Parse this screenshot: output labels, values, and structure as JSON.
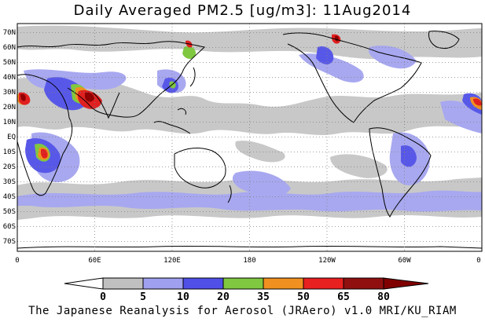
{
  "title": "Daily Averaged PM2.5 [ug/m3]: 11Aug2014",
  "footer": "The Japanese Reanalysis for Aerosol (JRAero) v1.0 MRI/KU_RIAM",
  "map": {
    "lat_labels": [
      "70N",
      "60N",
      "50N",
      "40N",
      "30N",
      "20N",
      "10N",
      "EQ",
      "10S",
      "20S",
      "30S",
      "40S",
      "50S",
      "60S",
      "70S"
    ],
    "lon_labels": [
      "0",
      "60E",
      "120E",
      "180",
      "120W",
      "60W",
      "0"
    ],
    "lat_range": [
      -75,
      75
    ],
    "lon_range": [
      0,
      360
    ],
    "grid": true
  },
  "legend": {
    "ticks": [
      "0",
      "5",
      "10",
      "20",
      "35",
      "50",
      "65",
      "80"
    ],
    "colors": [
      "#ffffff",
      "#c0c0c0",
      "#a0a0f0",
      "#5050e8",
      "#80c840",
      "#f09020",
      "#e82020",
      "#901010"
    ],
    "below_color": "#ffffff",
    "above_color": "#800000"
  }
}
